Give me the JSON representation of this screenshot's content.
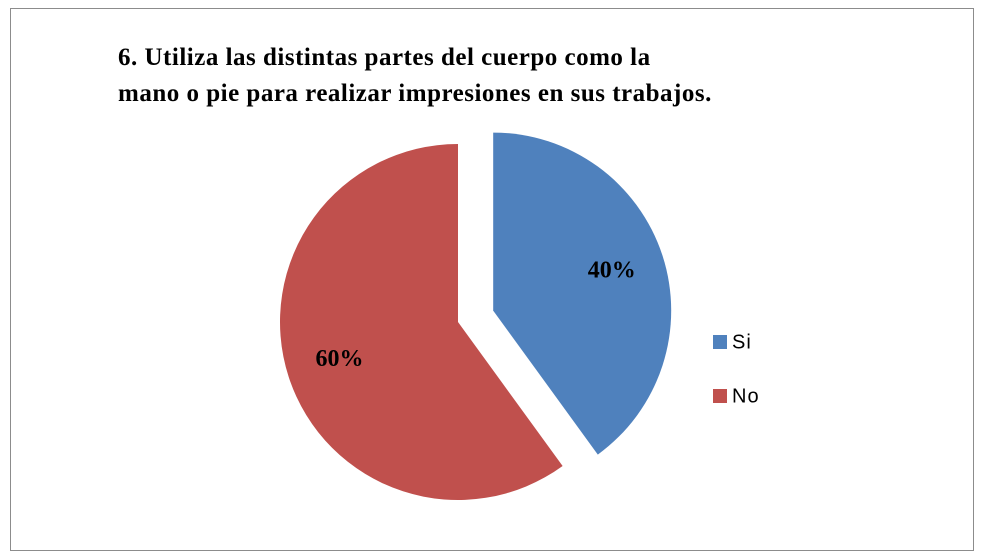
{
  "chart_data": {
    "type": "pie",
    "title": "6. Utiliza las distintas partes del cuerpo como la mano  o pie para realizar impresiones en sus trabajos.",
    "categories": [
      "Si",
      "No"
    ],
    "values": [
      40,
      60
    ],
    "value_labels": [
      "40%",
      "60%"
    ],
    "colors": [
      "#4f81bd",
      "#c0504d"
    ],
    "legend": "right"
  }
}
